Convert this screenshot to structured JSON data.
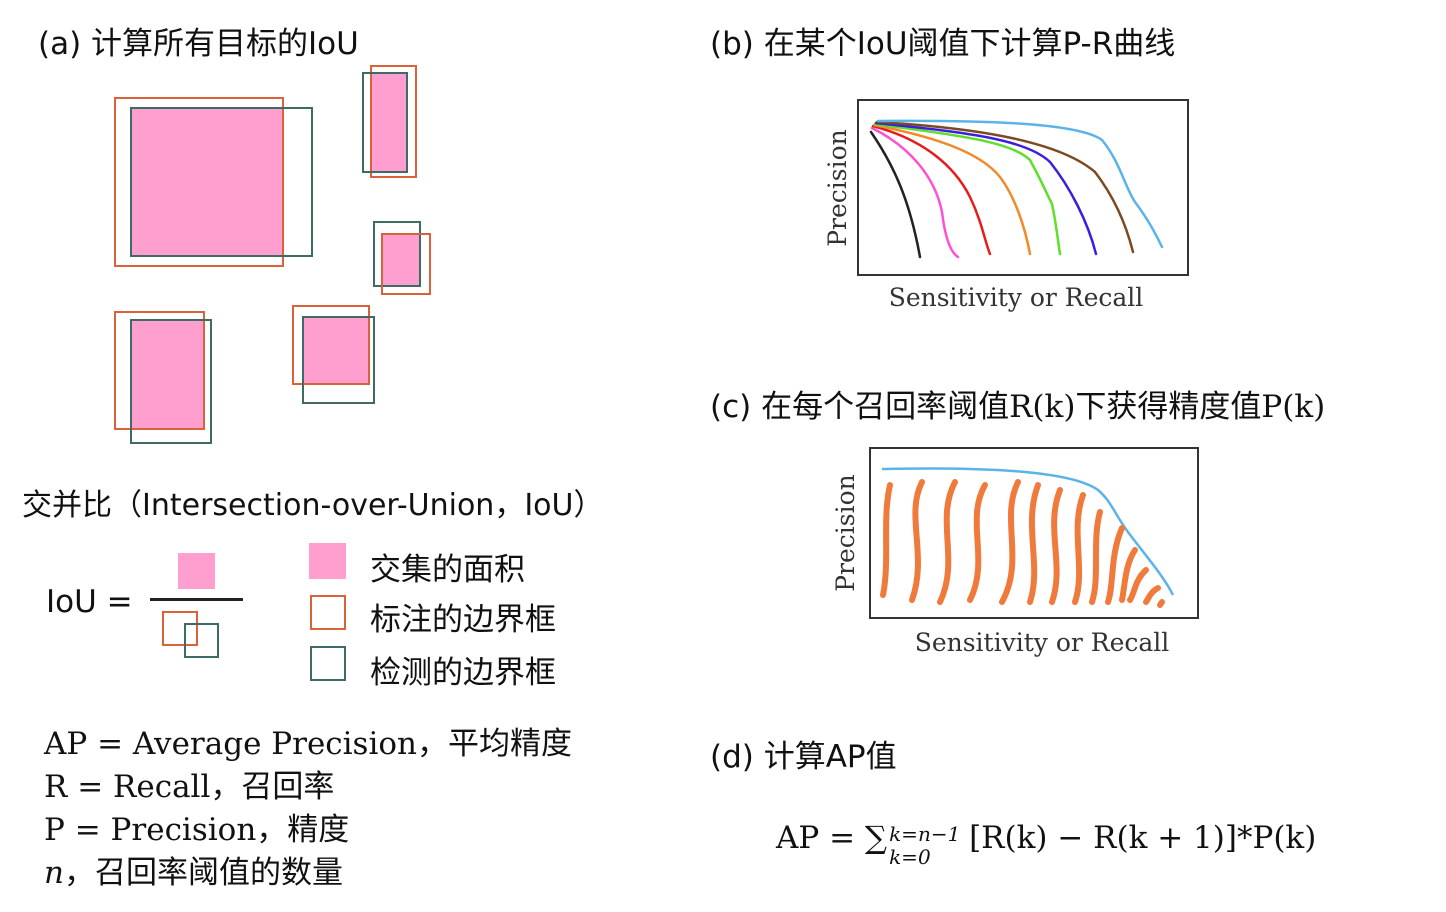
{
  "panel_a": {
    "title": "(a) 计算所有目标的IoU",
    "iou_caption": "交并比（Intersection-over-Union，IoU）",
    "formula_label": "IoU ="
  },
  "legend": {
    "items": [
      {
        "label": "交集的面积",
        "color": "#ff9fcf"
      },
      {
        "label": "标注的边界框",
        "color": "#d9623a"
      },
      {
        "label": "检测的边界框",
        "color": "#3f6b66"
      }
    ]
  },
  "definitions": {
    "ap": "AP = Average Precision，平均精度",
    "r": "R = Recall，召回率",
    "p": "P = Precision，精度",
    "n_var": "n",
    "n_text": "，召回率阈值的数量"
  },
  "panel_b": {
    "title": "(b) 在某个IoU阈值下计算P-R曲线",
    "ylabel": "Precision",
    "xlabel": "Sensitivity or Recall"
  },
  "panel_c": {
    "title_pre": "(c) 在每个召回率阈值",
    "k1": "R(k)",
    "title_mid": "下获得精度值",
    "k2": "P(k)",
    "ylabel": "Precision",
    "xlabel": "Sensitivity or Recall"
  },
  "panel_d": {
    "title": "(d) 计算AP值",
    "formula_lhs": "AP = ∑",
    "sup": "k=n−1",
    "sub": "k=0",
    "formula_rhs": "[R(k) − R(k + 1)]*P(k)"
  },
  "colors": {
    "pink": "#ff9fcf",
    "orange": "#d9623a",
    "teal": "#3f6b66",
    "curve_c_envelope": "#5ab4e8",
    "curve_c_strokes": "#f07a3c"
  }
}
